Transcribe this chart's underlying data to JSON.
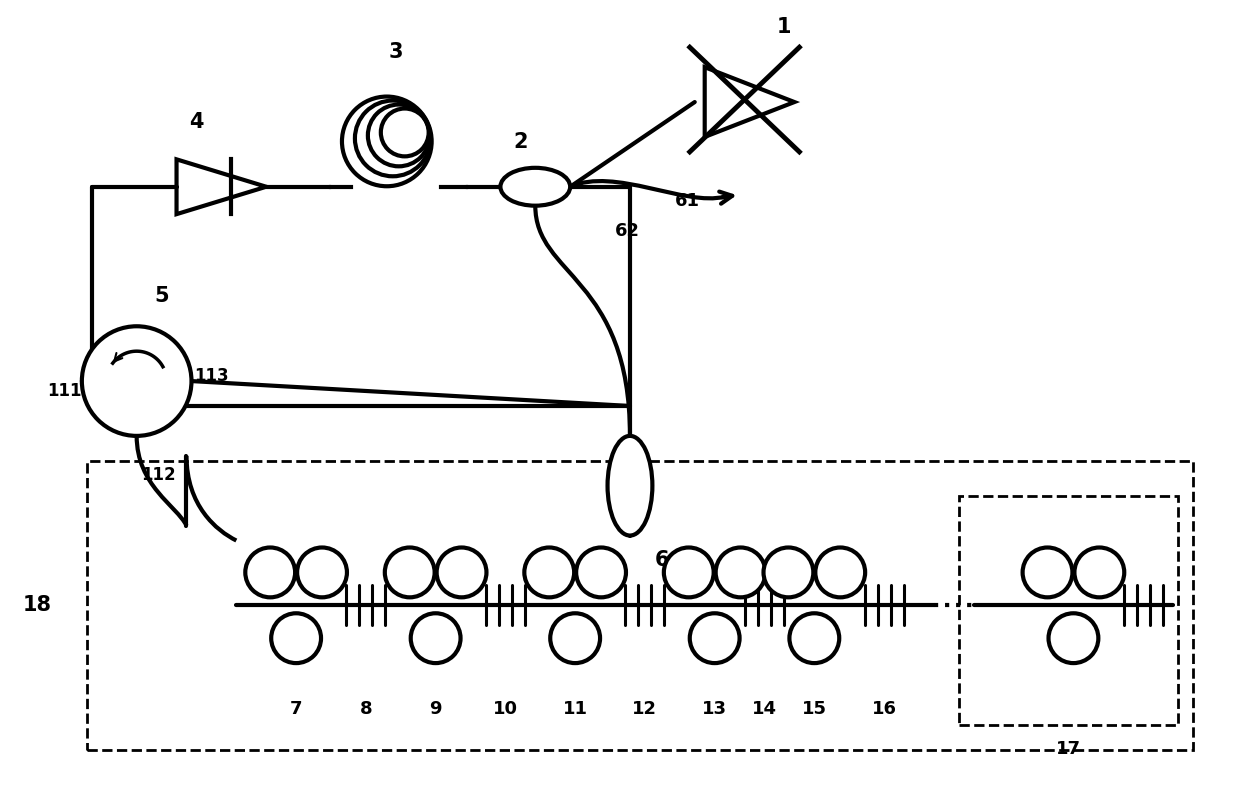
{
  "bg_color": "#ffffff",
  "line_color": "#000000",
  "line_width": 3.0,
  "fig_width": 12.4,
  "fig_height": 8.06,
  "dpi": 100
}
